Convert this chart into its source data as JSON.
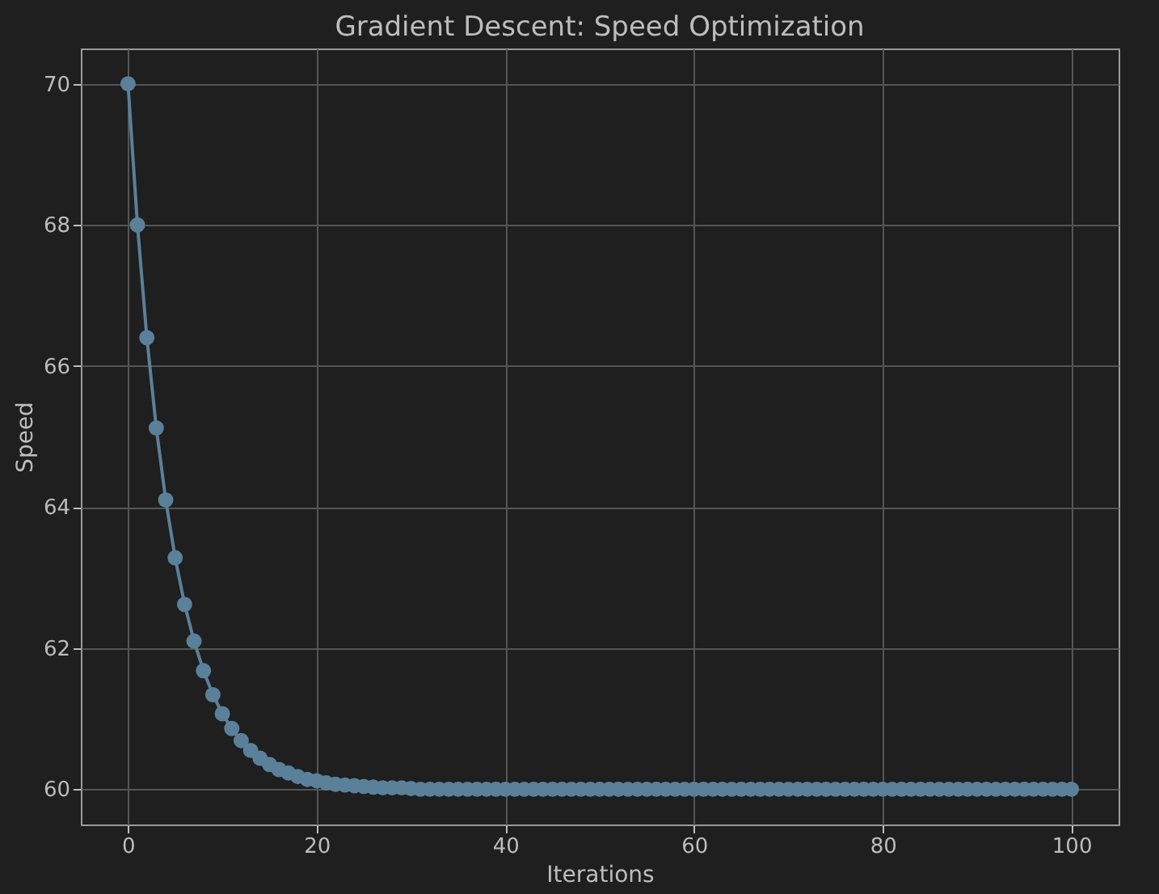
{
  "chart_data": {
    "type": "line",
    "title": "Gradient Descent: Speed Optimization",
    "xlabel": "Iterations",
    "ylabel": "Speed",
    "x": [
      0,
      1,
      2,
      3,
      4,
      5,
      6,
      7,
      8,
      9,
      10,
      11,
      12,
      13,
      14,
      15,
      16,
      17,
      18,
      19,
      20,
      21,
      22,
      23,
      24,
      25,
      26,
      27,
      28,
      29,
      30,
      31,
      32,
      33,
      34,
      35,
      36,
      37,
      38,
      39,
      40,
      41,
      42,
      43,
      44,
      45,
      46,
      47,
      48,
      49,
      50,
      51,
      52,
      53,
      54,
      55,
      56,
      57,
      58,
      59,
      60,
      61,
      62,
      63,
      64,
      65,
      66,
      67,
      68,
      69,
      70,
      71,
      72,
      73,
      74,
      75,
      76,
      77,
      78,
      79,
      80,
      81,
      82,
      83,
      84,
      85,
      86,
      87,
      88,
      89,
      90,
      91,
      92,
      93,
      94,
      95,
      96,
      97,
      98,
      99,
      100
    ],
    "series": [
      {
        "color": "#5b8099",
        "values": [
          70,
          68,
          66.4,
          65.12,
          64.1,
          63.28,
          62.62,
          62.1,
          61.68,
          61.34,
          61.07,
          60.86,
          60.69,
          60.55,
          60.44,
          60.35,
          60.28,
          60.23,
          60.18,
          60.14,
          60.12,
          60.09,
          60.07,
          60.06,
          60.05,
          60.04,
          60.03,
          60.02,
          60.02,
          60.02,
          60.01,
          60,
          60,
          60,
          60,
          60,
          60,
          60,
          60,
          60,
          60,
          60,
          60,
          60,
          60,
          60,
          60,
          60,
          60,
          60,
          60,
          60,
          60,
          60,
          60,
          60,
          60,
          60,
          60,
          60,
          60,
          60,
          60,
          60,
          60,
          60,
          60,
          60,
          60,
          60,
          60,
          60,
          60,
          60,
          60,
          60,
          60,
          60,
          60,
          60,
          60,
          60,
          60,
          60,
          60,
          60,
          60,
          60,
          60,
          60,
          60,
          60,
          60,
          60,
          60,
          60,
          60,
          60,
          60,
          60,
          60
        ]
      }
    ],
    "xlim": [
      -5,
      105
    ],
    "xticks": [
      0,
      20,
      40,
      60,
      80,
      100
    ],
    "ylim": [
      59.5,
      70.5
    ],
    "yticks": [
      60,
      62,
      64,
      66,
      68,
      70
    ],
    "grid": true,
    "marker": "circle",
    "line_style": "solid"
  }
}
